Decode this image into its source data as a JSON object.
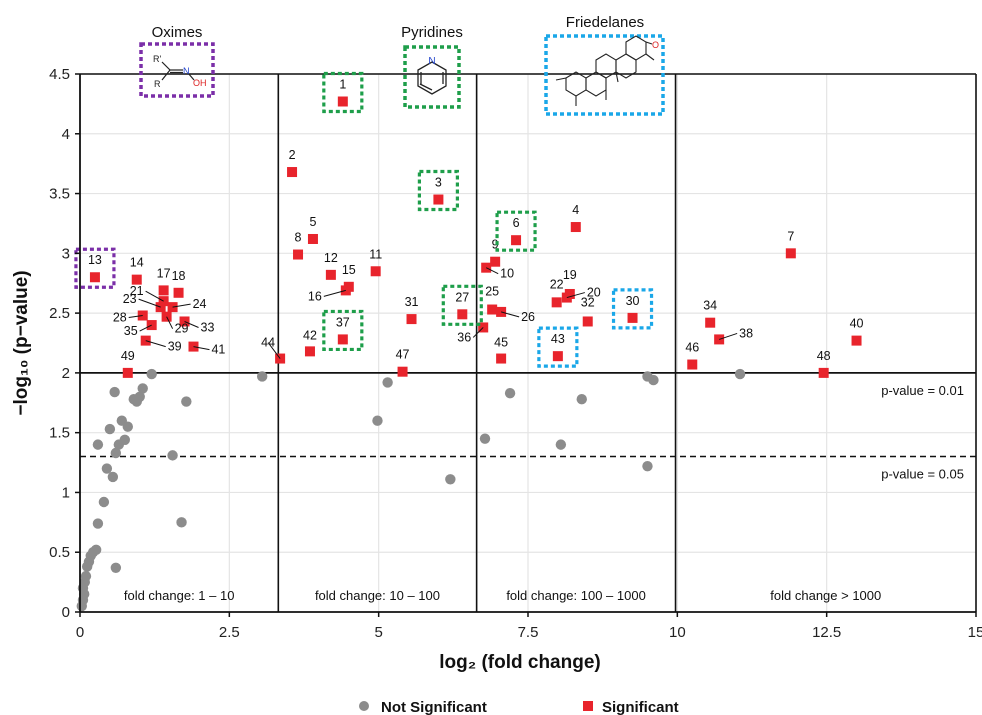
{
  "chart_data": {
    "type": "scatter",
    "title": "",
    "xlabel": "log₂ (fold change)",
    "ylabel": "−log₁₀ (p−value)",
    "xlim": [
      0,
      15
    ],
    "ylim": [
      0,
      4.5
    ],
    "xticks": [
      "0",
      "2.5",
      "5",
      "7.5",
      "10",
      "12.5",
      "15"
    ],
    "yticks": [
      "0",
      "0.5",
      "1",
      "1.5",
      "2",
      "2.5",
      "3",
      "3.5",
      "4",
      "4.5"
    ],
    "grid": true,
    "legend_position": "bottom",
    "series": [
      {
        "name": "Not Significant",
        "marker": "circle",
        "color": "#8c8c8c",
        "points": [
          [
            0.03,
            0.05
          ],
          [
            0.05,
            0.1
          ],
          [
            0.07,
            0.15
          ],
          [
            0.05,
            0.2
          ],
          [
            0.08,
            0.25
          ],
          [
            0.1,
            0.3
          ],
          [
            0.12,
            0.38
          ],
          [
            0.15,
            0.42
          ],
          [
            0.18,
            0.47
          ],
          [
            0.22,
            0.5
          ],
          [
            0.27,
            0.52
          ],
          [
            0.3,
            0.74
          ],
          [
            0.3,
            1.4
          ],
          [
            0.4,
            0.92
          ],
          [
            0.45,
            1.2
          ],
          [
            0.5,
            1.53
          ],
          [
            0.55,
            1.13
          ],
          [
            0.6,
            0.37
          ],
          [
            0.58,
            1.84
          ],
          [
            0.6,
            1.33
          ],
          [
            0.65,
            1.4
          ],
          [
            0.7,
            1.6
          ],
          [
            0.75,
            1.44
          ],
          [
            0.8,
            1.55
          ],
          [
            0.9,
            1.78
          ],
          [
            0.95,
            1.76
          ],
          [
            1.0,
            1.8
          ],
          [
            1.05,
            1.87
          ],
          [
            1.2,
            1.99
          ],
          [
            1.55,
            1.31
          ],
          [
            1.7,
            0.75
          ],
          [
            1.78,
            1.76
          ],
          [
            3.05,
            1.97
          ],
          [
            4.98,
            1.6
          ],
          [
            5.15,
            1.92
          ],
          [
            6.2,
            1.11
          ],
          [
            6.78,
            1.45
          ],
          [
            7.2,
            1.83
          ],
          [
            8.05,
            1.4
          ],
          [
            8.4,
            1.78
          ],
          [
            9.5,
            1.22
          ],
          [
            9.5,
            1.97
          ],
          [
            9.6,
            1.94
          ],
          [
            11.05,
            1.99
          ]
        ]
      },
      {
        "name": "Significant",
        "marker": "square",
        "color": "#e8242c",
        "points": [
          {
            "id": "1",
            "x": 4.4,
            "y": 4.27
          },
          {
            "id": "2",
            "x": 3.55,
            "y": 3.68
          },
          {
            "id": "3",
            "x": 6.0,
            "y": 3.45
          },
          {
            "id": "4",
            "x": 8.3,
            "y": 3.22
          },
          {
            "id": "5",
            "x": 3.9,
            "y": 3.12
          },
          {
            "id": "6",
            "x": 7.3,
            "y": 3.11
          },
          {
            "id": "7",
            "x": 11.9,
            "y": 3.0
          },
          {
            "id": "8",
            "x": 3.65,
            "y": 2.99
          },
          {
            "id": "9",
            "x": 6.95,
            "y": 2.93
          },
          {
            "id": "10",
            "x": 6.8,
            "y": 2.88
          },
          {
            "id": "11",
            "x": 4.95,
            "y": 2.85
          },
          {
            "id": "12",
            "x": 4.2,
            "y": 2.82
          },
          {
            "id": "13",
            "x": 0.25,
            "y": 2.8
          },
          {
            "id": "14",
            "x": 0.95,
            "y": 2.78
          },
          {
            "id": "15",
            "x": 4.5,
            "y": 2.72
          },
          {
            "id": "16",
            "x": 4.45,
            "y": 2.69
          },
          {
            "id": "17",
            "x": 1.4,
            "y": 2.69
          },
          {
            "id": "18",
            "x": 1.65,
            "y": 2.67
          },
          {
            "id": "19",
            "x": 8.2,
            "y": 2.66
          },
          {
            "id": "20",
            "x": 8.15,
            "y": 2.63
          },
          {
            "id": "21",
            "x": 1.4,
            "y": 2.6
          },
          {
            "id": "22",
            "x": 7.98,
            "y": 2.59
          },
          {
            "id": "23",
            "x": 1.35,
            "y": 2.55
          },
          {
            "id": "24",
            "x": 1.55,
            "y": 2.55
          },
          {
            "id": "25",
            "x": 6.9,
            "y": 2.53
          },
          {
            "id": "26",
            "x": 7.05,
            "y": 2.51
          },
          {
            "id": "27",
            "x": 6.4,
            "y": 2.49
          },
          {
            "id": "28",
            "x": 1.05,
            "y": 2.48
          },
          {
            "id": "29",
            "x": 1.45,
            "y": 2.47
          },
          {
            "id": "30",
            "x": 9.25,
            "y": 2.46
          },
          {
            "id": "31",
            "x": 5.55,
            "y": 2.45
          },
          {
            "id": "32",
            "x": 8.5,
            "y": 2.43
          },
          {
            "id": "33",
            "x": 1.75,
            "y": 2.43
          },
          {
            "id": "34",
            "x": 10.55,
            "y": 2.42
          },
          {
            "id": "35",
            "x": 1.2,
            "y": 2.4
          },
          {
            "id": "36",
            "x": 6.75,
            "y": 2.38
          },
          {
            "id": "37",
            "x": 4.4,
            "y": 2.28
          },
          {
            "id": "38",
            "x": 10.7,
            "y": 2.28
          },
          {
            "id": "39",
            "x": 1.1,
            "y": 2.27
          },
          {
            "id": "40",
            "x": 13.0,
            "y": 2.27
          },
          {
            "id": "41",
            "x": 1.9,
            "y": 2.22
          },
          {
            "id": "42",
            "x": 3.85,
            "y": 2.18
          },
          {
            "id": "43",
            "x": 8.0,
            "y": 2.14
          },
          {
            "id": "44",
            "x": 3.35,
            "y": 2.12
          },
          {
            "id": "45",
            "x": 7.05,
            "y": 2.12
          },
          {
            "id": "46",
            "x": 10.25,
            "y": 2.07
          },
          {
            "id": "47",
            "x": 5.4,
            "y": 2.01
          },
          {
            "id": "48",
            "x": 12.45,
            "y": 2.0
          },
          {
            "id": "49",
            "x": 0.8,
            "y": 2.0
          }
        ]
      }
    ],
    "thresholds": [
      {
        "y": 2.0,
        "style": "solid",
        "label": "p-value = 0.01"
      },
      {
        "y": 1.301,
        "style": "dashed",
        "label": "p-value = 0.05"
      }
    ],
    "fold_change_regions": [
      {
        "x_start": 0,
        "x_end": 3.32,
        "label": "fold change: 1 – 10"
      },
      {
        "x_start": 3.32,
        "x_end": 6.64,
        "label": "fold change: 10 – 100"
      },
      {
        "x_start": 6.64,
        "x_end": 9.97,
        "label": "fold change: 100 – 1000"
      },
      {
        "x_start": 9.97,
        "x_end": 15,
        "label": "fold change > 1000"
      }
    ],
    "compound_classes": [
      {
        "name": "Oximes",
        "color": "#7b2fa8",
        "members": [
          "13"
        ]
      },
      {
        "name": "Pyridines",
        "color": "#1e9e4a",
        "members": [
          "1",
          "3",
          "6",
          "27",
          "37"
        ]
      },
      {
        "name": "Friedelanes",
        "color": "#1aa7e8",
        "members": [
          "30",
          "43"
        ]
      }
    ],
    "structure_atoms": {
      "r_prime": "R'",
      "r": "R",
      "n": "N",
      "oh": "OH",
      "o": "O"
    }
  }
}
